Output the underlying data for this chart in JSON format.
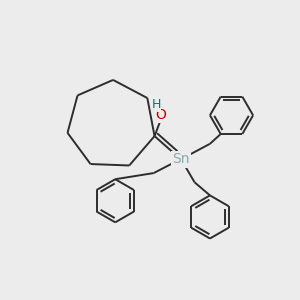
{
  "bg_color": "#ececec",
  "line_color": "#2d2d2d",
  "O_color": "#cc0000",
  "H_color": "#007878",
  "Sn_color": "#8aabab",
  "line_width": 1.4,
  "figsize": [
    3.0,
    3.0
  ],
  "dpi": 100,
  "xlim": [
    0,
    300
  ],
  "ylim": [
    0,
    300
  ]
}
